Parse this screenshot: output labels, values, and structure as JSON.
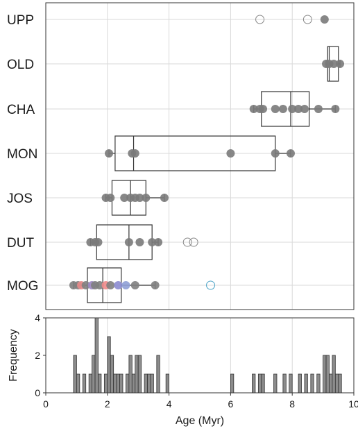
{
  "chart_data": [
    {
      "type": "boxplot",
      "xlim": [
        0,
        10
      ],
      "grid": true,
      "categories": [
        "UPP",
        "OLD",
        "CHA",
        "MON",
        "JOS",
        "DUT",
        "MOG"
      ],
      "boxes": {
        "UPP": null,
        "OLD": {
          "q1": 9.15,
          "median": 9.2,
          "q3": 9.5,
          "whisker_low": 9.1,
          "whisker_high": 9.55
        },
        "CHA": {
          "q1": 7.0,
          "median": 7.95,
          "q3": 8.55,
          "whisker_low": 6.75,
          "whisker_high": 9.4
        },
        "MON": {
          "q1": 2.25,
          "median": 2.85,
          "q3": 7.45,
          "whisker_low": 2.05,
          "whisker_high": 7.95
        },
        "JOS": {
          "q1": 2.15,
          "median": 2.75,
          "q3": 3.25,
          "whisker_low": 1.95,
          "whisker_high": 3.85
        },
        "DUT": {
          "q1": 1.65,
          "median": 2.7,
          "q3": 3.45,
          "whisker_low": 1.45,
          "whisker_high": 3.65
        },
        "MOG": {
          "q1": 1.35,
          "median": 1.85,
          "q3": 2.45,
          "whisker_low": 0.9,
          "whisker_high": 3.55
        }
      },
      "points": {
        "UPP": [
          9.05
        ],
        "OLD": [
          9.1,
          9.2,
          9.35,
          9.55
        ],
        "CHA": [
          6.75,
          6.95,
          7.05,
          7.45,
          7.7,
          8.0,
          8.2,
          8.4,
          8.85,
          9.4
        ],
        "MON": [
          2.05,
          2.8,
          2.9,
          6.0,
          7.45,
          7.95
        ],
        "JOS": [
          1.95,
          2.1,
          2.55,
          2.75,
          2.9,
          3.05,
          3.25,
          3.85
        ],
        "DUT": [
          1.45,
          1.6,
          1.7,
          2.7,
          3.05,
          3.45,
          3.65
        ],
        "MOG": [
          {
            "x": 0.9,
            "color": "#808080"
          },
          {
            "x": 1.05,
            "color": "#808080"
          },
          {
            "x": 1.15,
            "color": "#e88a8a"
          },
          {
            "x": 1.3,
            "color": "#808080"
          },
          {
            "x": 1.5,
            "color": "#9b86c2"
          },
          {
            "x": 1.6,
            "color": "#808080"
          },
          {
            "x": 1.75,
            "color": "#808080"
          },
          {
            "x": 1.95,
            "color": "#ef8a8a"
          },
          {
            "x": 2.1,
            "color": "#808080"
          },
          {
            "x": 2.35,
            "color": "#8b8bd0"
          },
          {
            "x": 2.6,
            "color": "#8fa0d6"
          },
          {
            "x": 2.9,
            "color": "#808080"
          },
          {
            "x": 3.55,
            "color": "#808080"
          }
        ]
      },
      "outliers": {
        "UPP": [
          {
            "x": 6.95,
            "color": "#888888"
          },
          {
            "x": 8.5,
            "color": "#888888"
          }
        ],
        "DUT": [
          {
            "x": 4.6,
            "color": "#888888"
          },
          {
            "x": 4.8,
            "color": "#888888"
          }
        ],
        "MOG": [
          {
            "x": 5.35,
            "color": "#4aa3c7"
          }
        ]
      }
    },
    {
      "type": "histogram",
      "xlabel": "Age (Myr)",
      "ylabel": "Frequency",
      "xlim": [
        0,
        10
      ],
      "ylim": [
        0,
        4
      ],
      "xticks": [
        "0",
        "2",
        "4",
        "6",
        "8",
        "10"
      ],
      "yticks": [
        "0",
        "2",
        "4"
      ],
      "bin_width": 0.1,
      "bins": [
        {
          "x": 0.9,
          "count": 2
        },
        {
          "x": 1.0,
          "count": 1
        },
        {
          "x": 1.2,
          "count": 1
        },
        {
          "x": 1.4,
          "count": 1
        },
        {
          "x": 1.5,
          "count": 2
        },
        {
          "x": 1.6,
          "count": 4
        },
        {
          "x": 1.7,
          "count": 1
        },
        {
          "x": 1.9,
          "count": 1
        },
        {
          "x": 2.0,
          "count": 3
        },
        {
          "x": 2.1,
          "count": 2
        },
        {
          "x": 2.2,
          "count": 1
        },
        {
          "x": 2.3,
          "count": 1
        },
        {
          "x": 2.4,
          "count": 1
        },
        {
          "x": 2.6,
          "count": 1
        },
        {
          "x": 2.7,
          "count": 2
        },
        {
          "x": 2.8,
          "count": 1
        },
        {
          "x": 2.9,
          "count": 2
        },
        {
          "x": 3.0,
          "count": 2
        },
        {
          "x": 3.2,
          "count": 1
        },
        {
          "x": 3.3,
          "count": 1
        },
        {
          "x": 3.4,
          "count": 1
        },
        {
          "x": 3.6,
          "count": 2
        },
        {
          "x": 3.9,
          "count": 1
        },
        {
          "x": 6.0,
          "count": 1
        },
        {
          "x": 6.7,
          "count": 1
        },
        {
          "x": 6.9,
          "count": 1
        },
        {
          "x": 7.0,
          "count": 1
        },
        {
          "x": 7.4,
          "count": 1
        },
        {
          "x": 7.7,
          "count": 1
        },
        {
          "x": 7.9,
          "count": 1
        },
        {
          "x": 8.2,
          "count": 1
        },
        {
          "x": 8.4,
          "count": 1
        },
        {
          "x": 8.6,
          "count": 1
        },
        {
          "x": 8.8,
          "count": 1
        },
        {
          "x": 9.0,
          "count": 2
        },
        {
          "x": 9.1,
          "count": 2
        },
        {
          "x": 9.2,
          "count": 1
        },
        {
          "x": 9.3,
          "count": 2
        },
        {
          "x": 9.4,
          "count": 1
        },
        {
          "x": 9.5,
          "count": 1
        }
      ]
    }
  ]
}
